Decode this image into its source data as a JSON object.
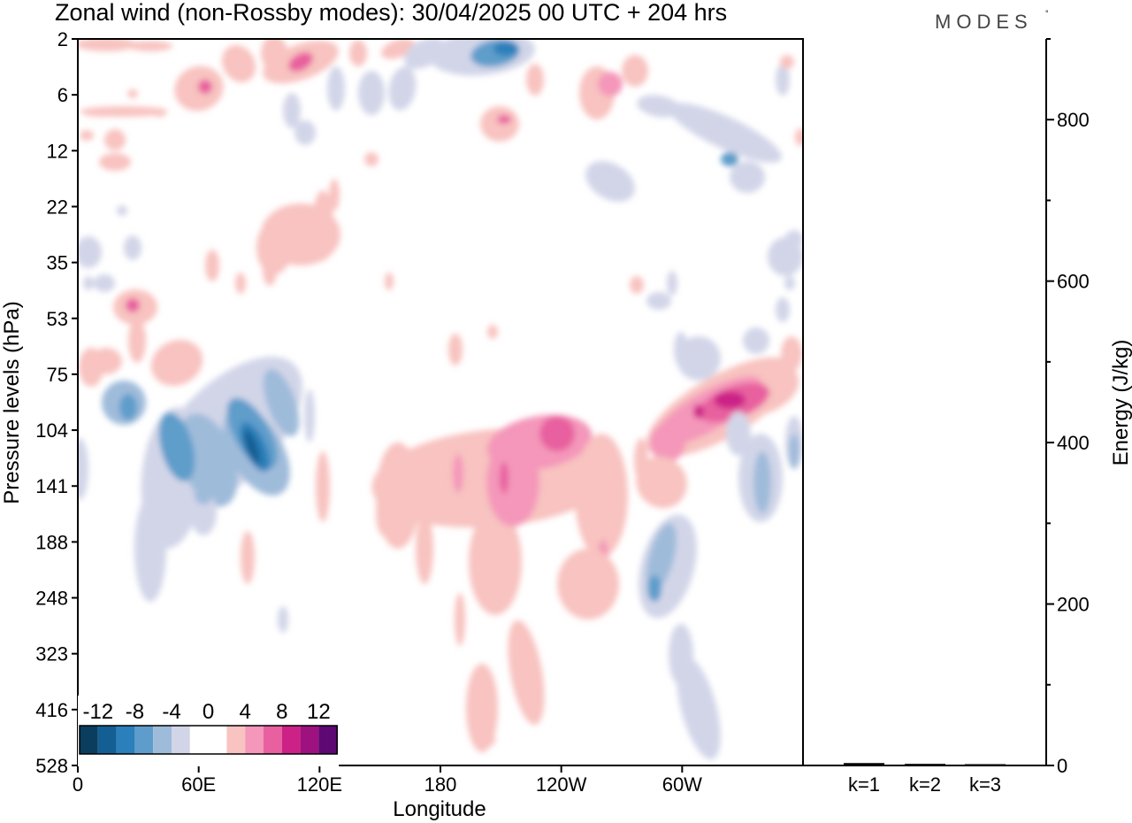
{
  "header": {
    "title": "Zonal wind (non-Rossby modes):  30/04/2025  00 UTC  + 204 hrs",
    "brand": "MODES",
    "brand_mark": "°"
  },
  "chart_data": [
    {
      "type": "heatmap",
      "title": "Zonal wind (non-Rossby modes):  30/04/2025  00 UTC  + 204 hrs",
      "xlabel": "Longitude",
      "ylabel": "Pressure levels (hPa)",
      "x_ticks": [
        "0",
        "60E",
        "120E",
        "180",
        "120W",
        "60W"
      ],
      "x_tick_degrees_east": [
        0,
        60,
        120,
        180,
        240,
        300
      ],
      "xlim_degrees_east": [
        0,
        360
      ],
      "y_ticks": [
        "2",
        "6",
        "12",
        "22",
        "35",
        "53",
        "75",
        "104",
        "141",
        "188",
        "248",
        "323",
        "416",
        "528"
      ],
      "y_scale": "model levels (nonlinear)",
      "y_inverted": true,
      "colorbar": {
        "labels": [
          "-12",
          "-8",
          "-4",
          "0",
          "4",
          "8",
          "12"
        ],
        "placement": "bottom-left",
        "colors": [
          "#0b3d5e",
          "#135f93",
          "#2b7fba",
          "#5e9dcb",
          "#9fbbda",
          "#d2d5e8",
          "#ffffff",
          "#ffffff",
          "#f8c3c0",
          "#f497ba",
          "#e8609f",
          "#cc2187",
          "#9e1280",
          "#5d0873"
        ]
      },
      "features": [
        {
          "sign": "positive",
          "lon_east": [
            250,
            355
          ],
          "hPa": [
            110,
            60
          ],
          "peak_ms": 12
        },
        {
          "sign": "positive",
          "lon_east": [
            150,
            270
          ],
          "hPa": [
            250,
            100
          ],
          "peak_ms": 9
        },
        {
          "sign": "negative",
          "lon_east": [
            30,
            105
          ],
          "hPa": [
            210,
            75
          ],
          "peak_ms": -12
        },
        {
          "sign": "negative",
          "lon_east": [
            280,
            320
          ],
          "hPa": [
            300,
            130
          ],
          "peak_ms": -7
        },
        {
          "sign": "negative",
          "lon_east": [
            190,
            225
          ],
          "hPa": [
            4,
            2
          ],
          "peak_ms": -7
        },
        {
          "sign": "positive",
          "lon_east": [
            85,
            140
          ],
          "hPa": [
            6,
            2
          ],
          "peak_ms": 7
        }
      ]
    },
    {
      "type": "bar",
      "categories": [
        "k=1",
        "k=2",
        "k=3"
      ],
      "values": [
        3,
        2,
        1
      ],
      "ylabel": "Energy (J/kg)",
      "ylim": [
        0,
        900
      ],
      "y_ticks": [
        "0",
        "200",
        "400",
        "600",
        "800"
      ]
    }
  ]
}
